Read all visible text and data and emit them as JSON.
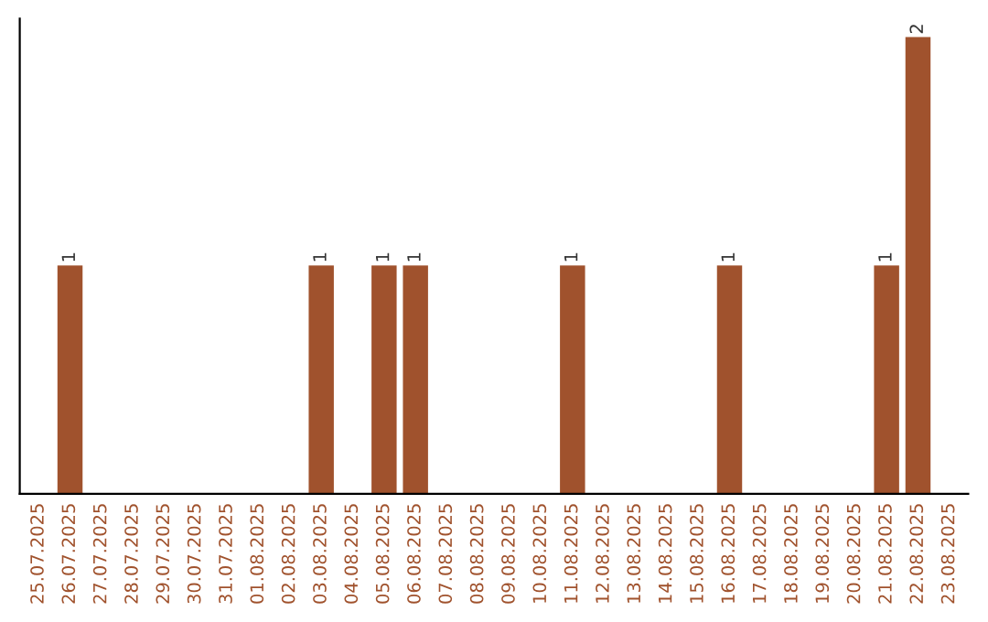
{
  "chart_data": {
    "type": "bar",
    "categories": [
      "25.07.2025",
      "26.07.2025",
      "27.07.2025",
      "28.07.2025",
      "29.07.2025",
      "30.07.2025",
      "31.07.2025",
      "01.08.2025",
      "02.08.2025",
      "03.08.2025",
      "04.08.2025",
      "05.08.2025",
      "06.08.2025",
      "07.08.2025",
      "08.08.2025",
      "09.08.2025",
      "10.08.2025",
      "11.08.2025",
      "12.08.2025",
      "13.08.2025",
      "14.08.2025",
      "15.08.2025",
      "16.08.2025",
      "17.08.2025",
      "18.08.2025",
      "19.08.2025",
      "20.08.2025",
      "21.08.2025",
      "22.08.2025",
      "23.08.2025"
    ],
    "values": [
      0,
      1,
      0,
      0,
      0,
      0,
      0,
      0,
      0,
      1,
      0,
      1,
      1,
      0,
      0,
      0,
      0,
      1,
      0,
      0,
      0,
      0,
      1,
      0,
      0,
      0,
      0,
      1,
      2,
      0
    ],
    "value_labels": [
      null,
      "1",
      null,
      null,
      null,
      null,
      null,
      null,
      null,
      "1",
      null,
      "1",
      "1",
      null,
      null,
      null,
      null,
      "1",
      null,
      null,
      null,
      null,
      "1",
      null,
      null,
      null,
      null,
      "1",
      "2",
      null
    ],
    "color": "#a0522d",
    "ylim": [
      0,
      2.08
    ],
    "tick_labels": "x",
    "grid": false,
    "legend": false
  }
}
